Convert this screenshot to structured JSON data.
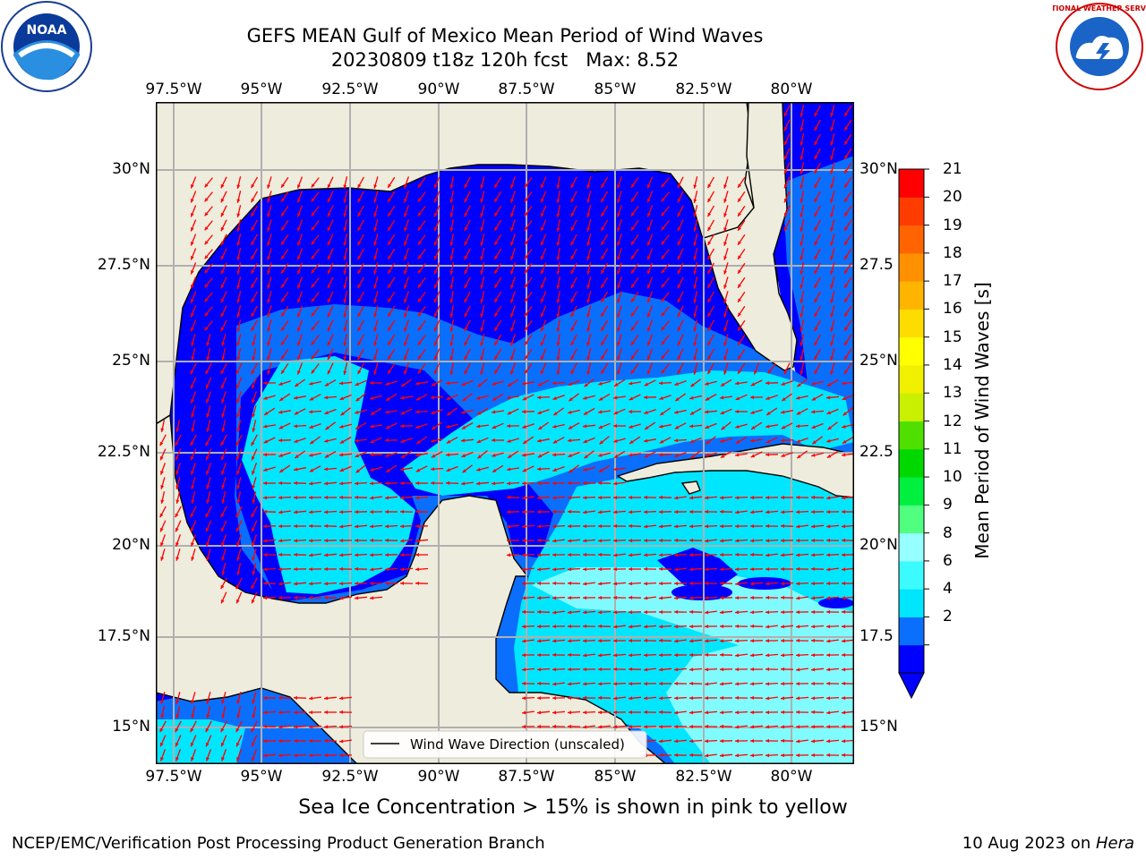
{
  "title": {
    "line1": "GEFS MEAN Gulf of Mexico Mean Period of Wind Waves",
    "line2": "20230809 t18z 120h fcst   Max: 8.52"
  },
  "map": {
    "lon_ticks_top": [
      "97.5°W",
      "95°W",
      "92.5°W",
      "90°W",
      "87.5°W",
      "85°W",
      "82.5°W",
      "80°W"
    ],
    "lon_ticks_bottom": [
      "97.5°W",
      "95°W",
      "92.5°W",
      "90°W",
      "87.5°W",
      "85°W",
      "82.5°W",
      "80°W"
    ],
    "lat_ticks_left": [
      "30°N",
      "27.5°N",
      "25°N",
      "22.5°N",
      "20°N",
      "17.5°N",
      "15°N"
    ],
    "lat_ticks_right": [
      "30°N",
      "27.5",
      "25°N",
      "22.5",
      "20°N",
      "17.5",
      "15°N"
    ],
    "legend_label": "Wind Wave Direction (unscaled)",
    "land_color": "#eeecdc",
    "arrow_color": "#ff0000",
    "gridlines": true
  },
  "colorbar": {
    "title": "Mean Period of Wind Waves [s]",
    "labels": [
      "21",
      "20",
      "19",
      "18",
      "17",
      "16",
      "15",
      "14",
      "13",
      "12",
      "11",
      "10",
      "9",
      "8",
      "6",
      "4",
      "2"
    ],
    "colors_bottom_to_top": [
      "#0000ff",
      "#0a6ffd",
      "#00e6ff",
      "#3cfbff",
      "#96ffff",
      "#50ff80",
      "#00f040",
      "#00d800",
      "#50e000",
      "#c8f000",
      "#f0f000",
      "#ffff00",
      "#ffdc00",
      "#ffb400",
      "#ff9000",
      "#ff6400",
      "#ff3c00",
      "#ff0000"
    ],
    "extend": "min"
  },
  "logos": {
    "noaa": "NOAA",
    "nws": "NATIONAL WEATHER SERVICE"
  },
  "ice_note": "Sea Ice Concentration > 15% is shown in pink to yellow",
  "footer": {
    "left": "NCEP/EMC/Verification Post Processing Product Generation Branch",
    "right_date": "10 Aug 2023 on ",
    "right_host": "Hera"
  }
}
